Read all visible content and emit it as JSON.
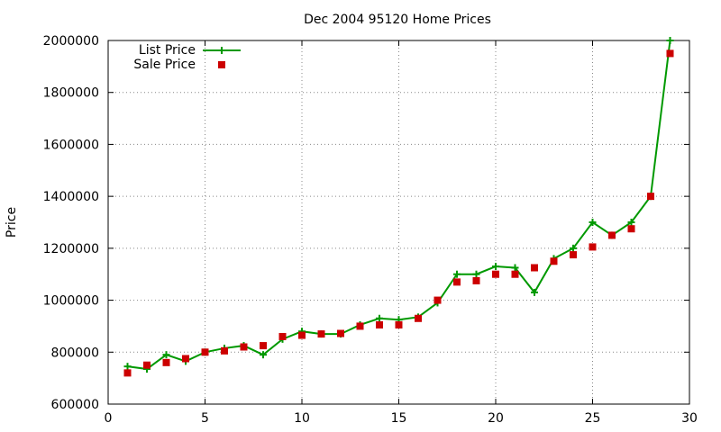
{
  "chart_data": {
    "type": "line",
    "title": "Dec 2004 95120 Home Prices",
    "xlabel": "",
    "ylabel": "Price",
    "xlim": [
      0,
      30
    ],
    "ylim": [
      600000,
      2000000
    ],
    "x_ticks": [
      0,
      5,
      10,
      15,
      20,
      25,
      30
    ],
    "y_ticks": [
      600000,
      800000,
      1000000,
      1200000,
      1400000,
      1600000,
      1800000,
      2000000
    ],
    "grid": true,
    "legend_position": "top-left",
    "series": [
      {
        "name": "List Price",
        "style": "line with plus markers",
        "color": "#009900",
        "x": [
          1,
          2,
          3,
          4,
          5,
          6,
          7,
          8,
          9,
          10,
          11,
          12,
          13,
          14,
          15,
          16,
          17,
          18,
          19,
          20,
          21,
          22,
          23,
          24,
          25,
          26,
          27,
          28,
          29
        ],
        "y": [
          745000,
          735000,
          790000,
          765000,
          800000,
          815000,
          825000,
          790000,
          850000,
          880000,
          870000,
          870000,
          905000,
          930000,
          925000,
          935000,
          990000,
          1100000,
          1100000,
          1130000,
          1125000,
          1030000,
          1160000,
          1200000,
          1300000,
          1250000,
          1300000,
          1400000,
          2000000
        ]
      },
      {
        "name": "Sale Price",
        "style": "square markers",
        "color": "#cc0000",
        "x": [
          1,
          2,
          3,
          4,
          5,
          6,
          7,
          8,
          9,
          10,
          11,
          12,
          13,
          14,
          15,
          16,
          17,
          18,
          19,
          20,
          21,
          22,
          23,
          24,
          25,
          26,
          27,
          28,
          29
        ],
        "y": [
          720000,
          750000,
          760000,
          775000,
          800000,
          805000,
          820000,
          825000,
          860000,
          865000,
          870000,
          872000,
          900000,
          905000,
          905000,
          930000,
          1000000,
          1070000,
          1075000,
          1100000,
          1100000,
          1125000,
          1150000,
          1175000,
          1205000,
          1250000,
          1275000,
          1400000,
          1950000
        ]
      }
    ]
  }
}
